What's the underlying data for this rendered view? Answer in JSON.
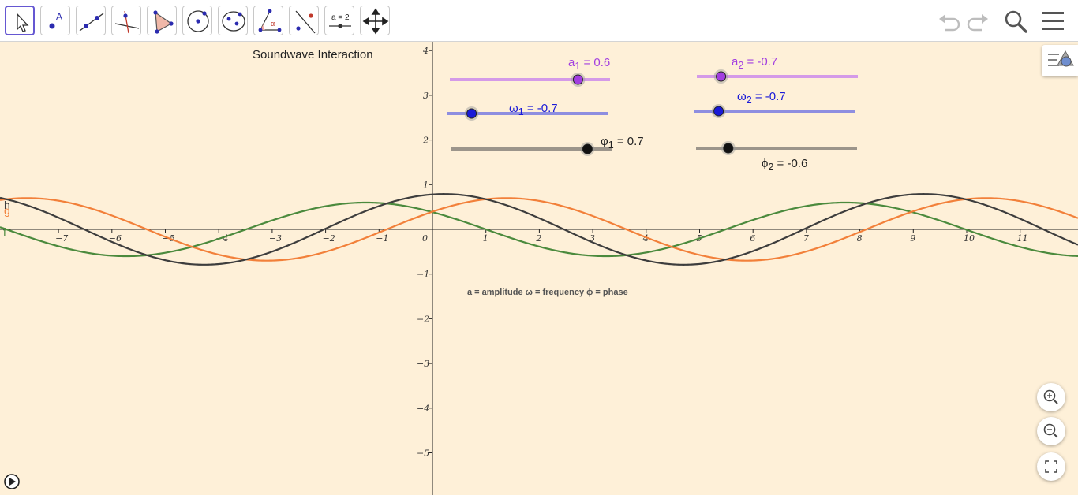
{
  "toolbar": {
    "tools": [
      {
        "name": "move-tool",
        "icon": "cursor-arrow-icon",
        "tooltip": "Move",
        "selected": true
      },
      {
        "name": "point-tool",
        "icon": "point-icon"
      },
      {
        "name": "line-tool",
        "icon": "line-icon"
      },
      {
        "name": "perpendicular-line-tool",
        "icon": "perpendicular-icon"
      },
      {
        "name": "polygon-tool",
        "icon": "polygon-icon"
      },
      {
        "name": "circle-center-point-tool",
        "icon": "circle-icon"
      },
      {
        "name": "ellipse-tool",
        "icon": "ellipse-icon"
      },
      {
        "name": "angle-tool",
        "icon": "angle-icon"
      },
      {
        "name": "reflect-tool",
        "icon": "reflect-icon"
      },
      {
        "name": "slider-tool",
        "icon": "slider-icon",
        "label": "a = 2"
      },
      {
        "name": "move-graphics-view-tool",
        "icon": "move-view-icon"
      }
    ],
    "right": [
      "undo-icon",
      "redo-icon",
      "search-icon",
      "menu-icon"
    ]
  },
  "graphics": {
    "title": "Soundwave Interaction",
    "legend": "a = amplitude  ω = frequency  ϕ = phase",
    "x_ticks": [
      "−7",
      "−6",
      "−5",
      "−4",
      "−3",
      "−2",
      "−1",
      "0",
      "1",
      "2",
      "3",
      "4",
      "5",
      "6",
      "7",
      "8",
      "9",
      "10",
      "11"
    ],
    "y_ticks": [
      "4",
      "3",
      "2",
      "1",
      "−1",
      "−2",
      "−3",
      "−4",
      "−5"
    ],
    "curve_labels": {
      "h": "h",
      "g": "g",
      "f": "f"
    },
    "colors": {
      "background": "#fef0d8",
      "f": "#4b8a3d",
      "g": "#f2803a",
      "h": "#3d3d3d",
      "a_slider": "#a23ee0",
      "w_slider": "#1a1ad8",
      "phi_slider": "#5e5e5e"
    }
  },
  "sliders": {
    "a1": {
      "name": "a",
      "sub": "1",
      "value": "0.6",
      "num": 0.6,
      "min": -1,
      "max": 1
    },
    "a2": {
      "name": "a",
      "sub": "2",
      "value": "-0.7",
      "num": -0.7,
      "min": -1,
      "max": 1
    },
    "w1": {
      "name": "ω",
      "sub": "1",
      "value": "-0.7",
      "num": -0.7,
      "min": -1,
      "max": 1
    },
    "w2": {
      "name": "ω",
      "sub": "2",
      "value": "-0.7",
      "num": -0.7,
      "min": -1,
      "max": 1
    },
    "phi1": {
      "name": "φ",
      "sub": "1",
      "value": "0.7",
      "num": 0.7,
      "min": -1,
      "max": 1
    },
    "phi2": {
      "name": "ϕ",
      "sub": "2",
      "value": "-0.6",
      "num": -0.6,
      "min": -1,
      "max": 1
    }
  },
  "controls": {
    "zoom_in": "zoom-in-icon",
    "zoom_out": "zoom-out-icon",
    "fullscreen": "fullscreen-icon",
    "play": "play-icon",
    "style_bar": "style-bar-icon"
  }
}
